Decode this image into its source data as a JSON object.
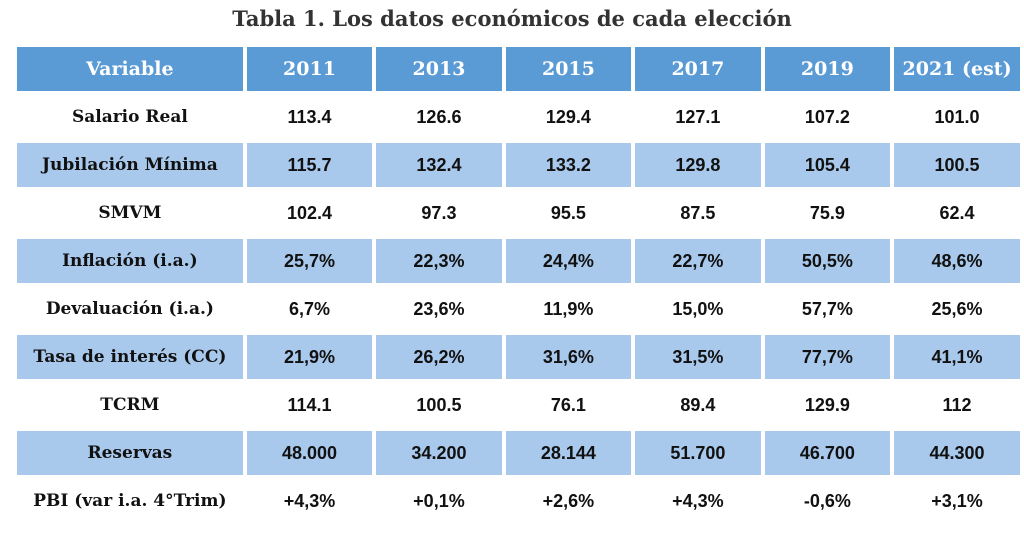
{
  "chart_data": {
    "type": "table",
    "title": "Tabla 1. Los datos económicos de cada elección",
    "columns": [
      "Variable",
      "2011",
      "2013",
      "2015",
      "2017",
      "2019",
      "2021 (est)"
    ],
    "rows": [
      {
        "label": "Salario Real",
        "values": [
          "113.4",
          "126.6",
          "129.4",
          "127.1",
          "107.2",
          "101.0"
        ]
      },
      {
        "label": "Jubilación Mínima",
        "values": [
          "115.7",
          "132.4",
          "133.2",
          "129.8",
          "105.4",
          "100.5"
        ]
      },
      {
        "label": "SMVM",
        "values": [
          "102.4",
          "97.3",
          "95.5",
          "87.5",
          "75.9",
          "62.4"
        ]
      },
      {
        "label": "Inflación (i.a.)",
        "values": [
          "25,7%",
          "22,3%",
          "24,4%",
          "22,7%",
          "50,5%",
          "48,6%"
        ]
      },
      {
        "label": "Devaluación (i.a.)",
        "values": [
          "6,7%",
          "23,6%",
          "11,9%",
          "15,0%",
          "57,7%",
          "25,6%"
        ]
      },
      {
        "label": "Tasa de interés (CC)",
        "values": [
          "21,9%",
          "26,2%",
          "31,6%",
          "31,5%",
          "77,7%",
          "41,1%"
        ]
      },
      {
        "label": "TCRM",
        "values": [
          "114.1",
          "100.5",
          "76.1",
          "89.4",
          "129.9",
          "112"
        ]
      },
      {
        "label": "Reservas",
        "values": [
          "48.000",
          "34.200",
          "28.144",
          "51.700",
          "46.700",
          "44.300"
        ]
      },
      {
        "label": "PBI (var i.a. 4°Trim)",
        "values": [
          "+4,3%",
          "+0,1%",
          "+2,6%",
          "+4,3%",
          "-0,6%",
          "+3,1%"
        ]
      }
    ]
  },
  "colors": {
    "header_bg": "#5b9bd5",
    "header_text": "#ffffff",
    "shaded_row_bg": "#a8c8ec",
    "plain_row_bg": "#ffffff",
    "title_text": "#333333"
  }
}
